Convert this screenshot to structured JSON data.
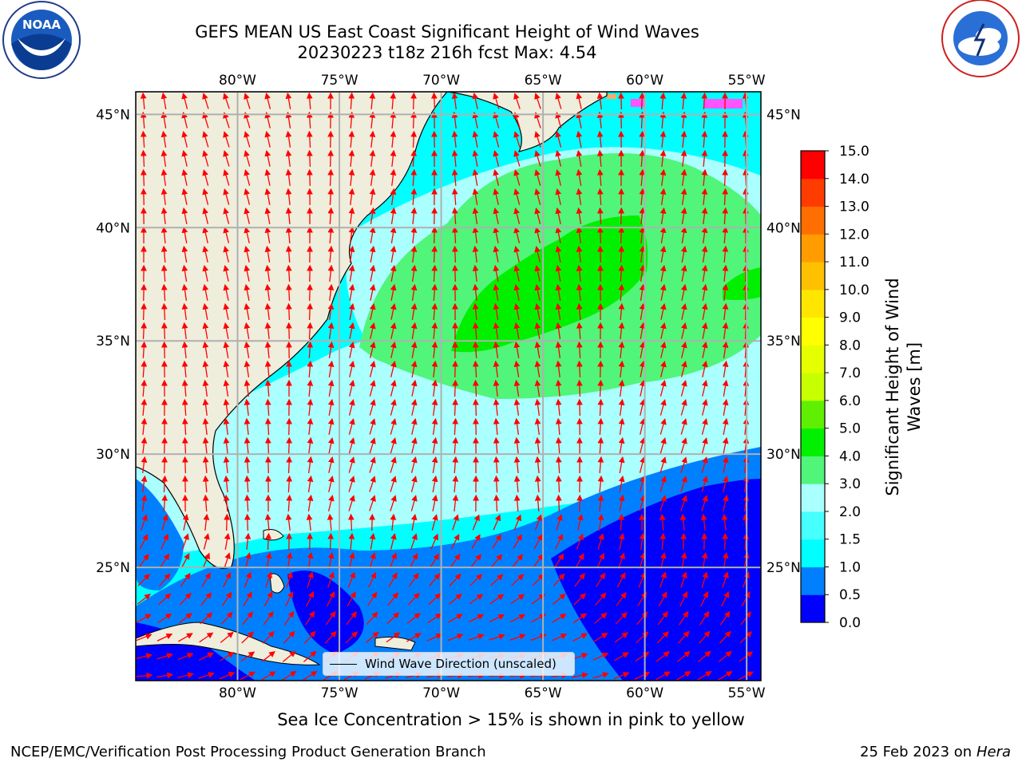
{
  "title": {
    "line1": "GEFS MEAN US East Coast Significant Height of Wind Waves",
    "line2": "20230223 t18z 216h fcst   Max: 4.54"
  },
  "logos": {
    "left": {
      "text": "NOAA",
      "icon": "noaa-logo-icon",
      "ring": "NATIONAL OCEANIC AND ATMOSPHERIC ADMINISTRATION · U.S. DEPARTMENT OF COMMERCE"
    },
    "right": {
      "icon": "nws-logo-icon",
      "ring": "NATIONAL WEATHER SERVICE"
    }
  },
  "map": {
    "lon_labels": [
      "80°W",
      "75°W",
      "70°W",
      "65°W",
      "60°W",
      "55°W"
    ],
    "lat_labels": [
      "45°N",
      "40°N",
      "35°N",
      "30°N",
      "25°N"
    ],
    "lon_range": [
      -85,
      -54.3
    ],
    "lat_range": [
      20,
      46
    ],
    "land_color": "#efeddc",
    "arrow_color": "#ff0000",
    "grid_color": "#b0b0b0"
  },
  "legend": {
    "label": "Wind Wave Direction (unscaled)"
  },
  "colorbar": {
    "label_line1": "Significant Height of Wind",
    "label_line2": "Waves [m]",
    "ticks": [
      "0.0",
      "0.5",
      "1.0",
      "1.5",
      "2.0",
      "3.0",
      "4.0",
      "5.0",
      "6.0",
      "7.0",
      "8.0",
      "9.0",
      "10.0",
      "11.0",
      "12.0",
      "13.0",
      "14.0",
      "15.0"
    ],
    "colors": [
      "#0000ff",
      "#0080ff",
      "#00ffff",
      "#46ffff",
      "#aaffff",
      "#50f57a",
      "#00f000",
      "#5ef000",
      "#c8ff00",
      "#e6ff00",
      "#ffff00",
      "#ffe600",
      "#ffc000",
      "#ff9c00",
      "#ff6e00",
      "#ff3c00",
      "#ff0000"
    ]
  },
  "footer": {
    "sea_ice": "Sea Ice Concentration > 15% is shown in pink to yellow",
    "credit": "NCEP/EMC/Verification Post Processing Product Generation Branch",
    "date": "25 Feb 2023 on",
    "host": "Hera"
  }
}
